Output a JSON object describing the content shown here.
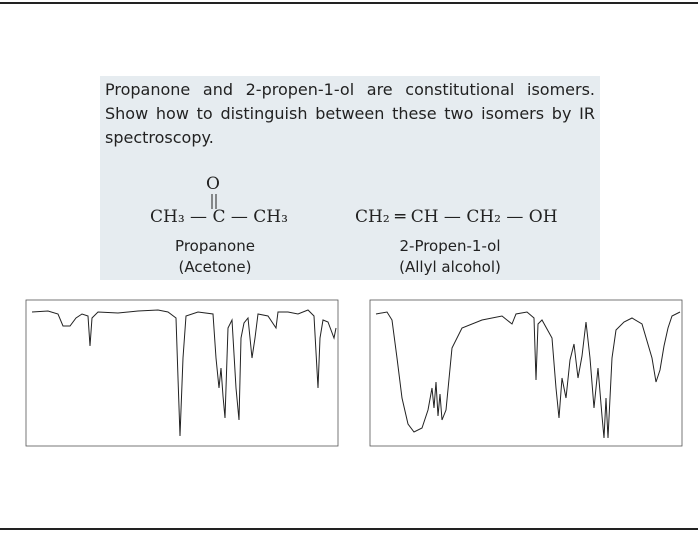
{
  "question": "Propanone and 2-propen-1-ol are constitutional isomers. Show how to distinguish between these two isomers by IR spectroscopy.",
  "molecules": [
    {
      "oxygen": "O",
      "formula": "CH₃ — C — CH₃",
      "name": "Propanone",
      "common_name": "(Acetone)"
    },
    {
      "formula": "CH₂ ═ CH — CH₂ — OH",
      "name": "2-Propen-1-ol",
      "common_name": "(Allyl alcohol)"
    }
  ]
}
